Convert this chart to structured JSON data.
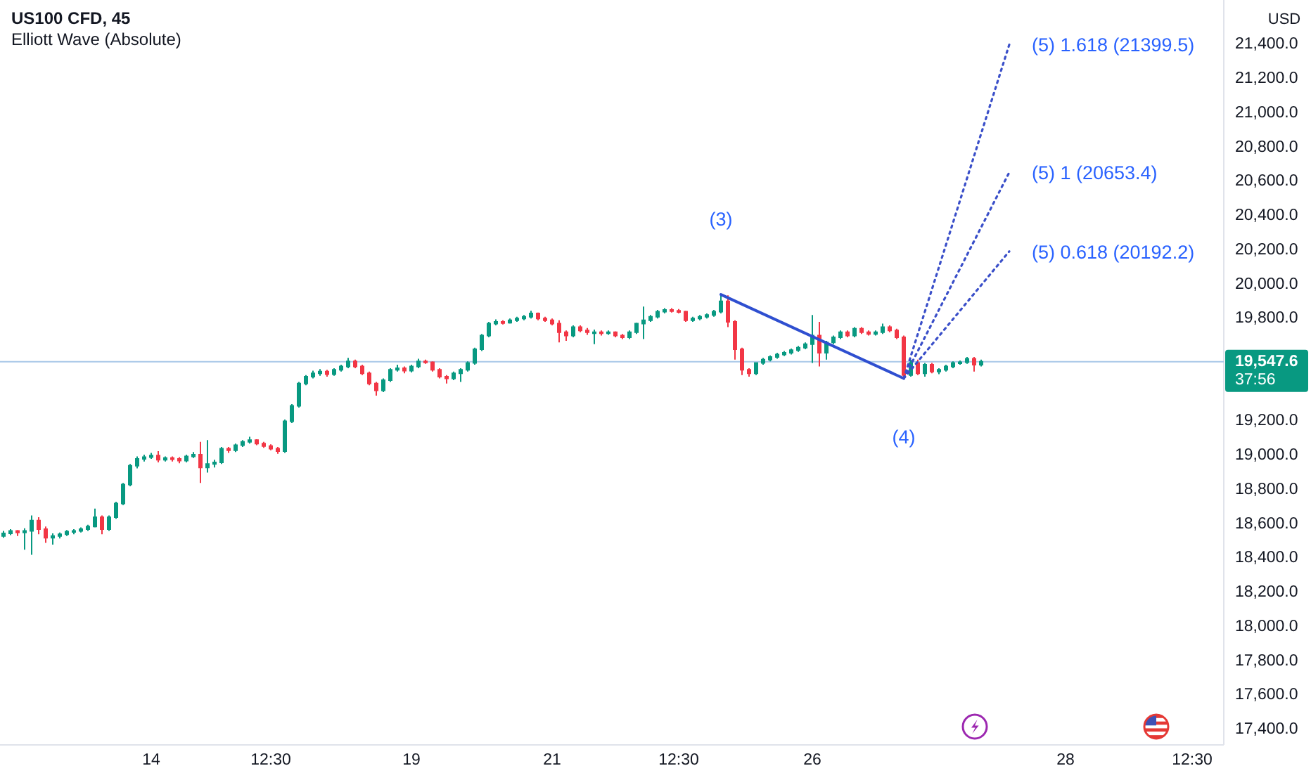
{
  "chart_data": {
    "type": "candlestick",
    "title": "US100 CFD, 45",
    "subtitle": "Elliott Wave (Absolute)",
    "ylabel": "USD",
    "categories": [
      null,
      null,
      null,
      null,
      null,
      null,
      null,
      null,
      null,
      null,
      null,
      null,
      null,
      null,
      null,
      null,
      null,
      null,
      null,
      null,
      null,
      "14",
      null,
      null,
      null,
      null,
      null,
      null,
      null,
      null,
      null,
      null,
      null,
      null,
      null,
      null,
      null,
      null,
      "12:30",
      null,
      null,
      null,
      null,
      null,
      null,
      null,
      null,
      null,
      null,
      null,
      null,
      null,
      null,
      null,
      null,
      null,
      null,
      null,
      "19",
      null,
      null,
      null,
      null,
      null,
      null,
      null,
      null,
      null,
      null,
      null,
      null,
      null,
      null,
      null,
      null,
      null,
      null,
      null,
      "21",
      null,
      null,
      null,
      null,
      null,
      null,
      null,
      null,
      null,
      null,
      null,
      null,
      null,
      null,
      null,
      null,
      null,
      "12:30",
      null,
      null,
      null,
      null,
      null,
      null,
      null,
      null,
      null,
      null,
      null,
      null,
      null,
      null,
      null,
      null,
      null,
      null,
      "26",
      null,
      null,
      null,
      null,
      null,
      null,
      null,
      null,
      null,
      null,
      null,
      null,
      null,
      null,
      null,
      null,
      null,
      null,
      null,
      null,
      null,
      null,
      null,
      null,
      null,
      null,
      null,
      null,
      null,
      null,
      null,
      null,
      null,
      null,
      null,
      "28",
      null,
      null,
      null,
      null,
      null,
      null,
      null,
      null,
      null,
      null,
      null,
      null,
      null,
      null,
      null,
      null,
      null,
      "12:30",
      null,
      null,
      null,
      null
    ],
    "ylim": [
      17310,
      21660
    ],
    "yticks": [
      {
        "value": 17400,
        "label": "17,400.0"
      },
      {
        "value": 17600,
        "label": "17,600.0"
      },
      {
        "value": 17800,
        "label": "17,800.0"
      },
      {
        "value": 18000,
        "label": "18,000.0"
      },
      {
        "value": 18200,
        "label": "18,200.0"
      },
      {
        "value": 18400,
        "label": "18,400.0"
      },
      {
        "value": 18600,
        "label": "18,600.0"
      },
      {
        "value": 18800,
        "label": "18,800.0"
      },
      {
        "value": 19000,
        "label": "19,000.0"
      },
      {
        "value": 19200,
        "label": "19,200.0"
      },
      {
        "value": 19800,
        "label": "19,800.0"
      },
      {
        "value": 20000,
        "label": "20,000.0"
      },
      {
        "value": 20200,
        "label": "20,200.0"
      },
      {
        "value": 20400,
        "label": "20,400.0"
      },
      {
        "value": 20600,
        "label": "20,600.0"
      },
      {
        "value": 20800,
        "label": "20,800.0"
      },
      {
        "value": 21000,
        "label": "21,000.0"
      },
      {
        "value": 21200,
        "label": "21,200.0"
      },
      {
        "value": 21400,
        "label": "21,400.0"
      }
    ],
    "ohlc": [
      [
        18530,
        18560,
        18520,
        18545
      ],
      [
        18545,
        18570,
        18535,
        18560
      ],
      [
        18560,
        18565,
        18530,
        18550
      ],
      [
        18550,
        18575,
        18450,
        18560
      ],
      [
        18560,
        18650,
        18420,
        18620
      ],
      [
        18620,
        18640,
        18540,
        18570
      ],
      [
        18570,
        18585,
        18490,
        18520
      ],
      [
        18520,
        18545,
        18480,
        18530
      ],
      [
        18530,
        18550,
        18515,
        18540
      ],
      [
        18540,
        18565,
        18530,
        18555
      ],
      [
        18555,
        18570,
        18540,
        18560
      ],
      [
        18560,
        18580,
        18550,
        18570
      ],
      [
        18570,
        18595,
        18560,
        18585
      ],
      [
        18585,
        18690,
        18580,
        18640
      ],
      [
        18640,
        18650,
        18540,
        18570
      ],
      [
        18570,
        18650,
        18560,
        18640
      ],
      [
        18640,
        18730,
        18630,
        18720
      ],
      [
        18720,
        18840,
        18710,
        18830
      ],
      [
        18830,
        18950,
        18820,
        18940
      ],
      [
        18940,
        18995,
        18925,
        18980
      ],
      [
        18980,
        19005,
        18965,
        18990
      ],
      [
        18990,
        19015,
        18980,
        19000
      ],
      [
        19000,
        19025,
        18960,
        18975
      ],
      [
        18975,
        18995,
        18965,
        18985
      ],
      [
        18985,
        18995,
        18965,
        18980
      ],
      [
        18980,
        18990,
        18955,
        18970
      ],
      [
        18970,
        19005,
        18960,
        18995
      ],
      [
        18995,
        19020,
        18985,
        19005
      ],
      [
        19005,
        19080,
        18840,
        18930
      ],
      [
        18930,
        19090,
        18900,
        18950
      ],
      [
        18950,
        18975,
        18930,
        18960
      ],
      [
        18960,
        19050,
        18950,
        19040
      ],
      [
        19040,
        19050,
        19015,
        19030
      ],
      [
        19030,
        19070,
        19020,
        19060
      ],
      [
        19060,
        19090,
        19050,
        19080
      ],
      [
        19080,
        19110,
        19070,
        19090
      ],
      [
        19090,
        19095,
        19060,
        19070
      ],
      [
        19070,
        19080,
        19045,
        19055
      ],
      [
        19055,
        19065,
        19030,
        19040
      ],
      [
        19040,
        19050,
        19010,
        19025
      ],
      [
        19025,
        19210,
        19015,
        19200
      ],
      [
        19200,
        19300,
        19190,
        19290
      ],
      [
        19290,
        19430,
        19280,
        19420
      ],
      [
        19420,
        19470,
        19410,
        19460
      ],
      [
        19460,
        19495,
        19450,
        19480
      ],
      [
        19480,
        19505,
        19465,
        19490
      ],
      [
        19490,
        19500,
        19460,
        19475
      ],
      [
        19475,
        19510,
        19465,
        19500
      ],
      [
        19500,
        19530,
        19490,
        19520
      ],
      [
        19520,
        19570,
        19510,
        19550
      ],
      [
        19550,
        19560,
        19510,
        19520
      ],
      [
        19520,
        19530,
        19470,
        19480
      ],
      [
        19480,
        19490,
        19410,
        19420
      ],
      [
        19420,
        19430,
        19350,
        19380
      ],
      [
        19380,
        19450,
        19370,
        19440
      ],
      [
        19440,
        19510,
        19430,
        19500
      ],
      [
        19500,
        19530,
        19490,
        19510
      ],
      [
        19510,
        19520,
        19480,
        19495
      ],
      [
        19495,
        19530,
        19485,
        19520
      ],
      [
        19520,
        19565,
        19510,
        19550
      ],
      [
        19550,
        19560,
        19535,
        19545
      ],
      [
        19545,
        19550,
        19490,
        19500
      ],
      [
        19500,
        19510,
        19450,
        19460
      ],
      [
        19460,
        19470,
        19420,
        19450
      ],
      [
        19450,
        19490,
        19440,
        19480
      ],
      [
        19480,
        19510,
        19430,
        19500
      ],
      [
        19500,
        19550,
        19490,
        19540
      ],
      [
        19540,
        19630,
        19530,
        19620
      ],
      [
        19620,
        19710,
        19610,
        19700
      ],
      [
        19700,
        19780,
        19690,
        19770
      ],
      [
        19770,
        19795,
        19760,
        19780
      ],
      [
        19780,
        19790,
        19765,
        19775
      ],
      [
        19775,
        19800,
        19770,
        19790
      ],
      [
        19790,
        19810,
        19780,
        19800
      ],
      [
        19800,
        19820,
        19790,
        19810
      ],
      [
        19810,
        19845,
        19800,
        19830
      ],
      [
        19830,
        19835,
        19790,
        19800
      ],
      [
        19800,
        19810,
        19780,
        19790
      ],
      [
        19790,
        19800,
        19760,
        19770
      ],
      [
        19770,
        19790,
        19660,
        19720
      ],
      [
        19720,
        19730,
        19670,
        19700
      ],
      [
        19700,
        19760,
        19690,
        19750
      ],
      [
        19750,
        19760,
        19720,
        19730
      ],
      [
        19730,
        19745,
        19705,
        19720
      ],
      [
        19720,
        19735,
        19650,
        19720
      ],
      [
        19720,
        19730,
        19700,
        19715
      ],
      [
        19715,
        19730,
        19705,
        19720
      ],
      [
        19720,
        19725,
        19690,
        19700
      ],
      [
        19700,
        19710,
        19680,
        19690
      ],
      [
        19690,
        19730,
        19680,
        19720
      ],
      [
        19720,
        19775,
        19710,
        19770
      ],
      [
        19770,
        19870,
        19680,
        19790
      ],
      [
        19790,
        19820,
        19780,
        19810
      ],
      [
        19810,
        19850,
        19800,
        19840
      ],
      [
        19840,
        19860,
        19830,
        19850
      ],
      [
        19850,
        19860,
        19835,
        19845
      ],
      [
        19845,
        19855,
        19830,
        19840
      ],
      [
        19840,
        19845,
        19780,
        19790
      ],
      [
        19790,
        19810,
        19780,
        19800
      ],
      [
        19800,
        19820,
        19790,
        19810
      ],
      [
        19810,
        19830,
        19800,
        19820
      ],
      [
        19820,
        19850,
        19810,
        19840
      ],
      [
        19840,
        19940,
        19830,
        19900
      ],
      [
        19900,
        19935,
        19750,
        19780
      ],
      [
        19780,
        19790,
        19560,
        19620
      ],
      [
        19620,
        19630,
        19470,
        19500
      ],
      [
        19500,
        19510,
        19460,
        19480
      ],
      [
        19480,
        19545,
        19470,
        19540
      ],
      [
        19540,
        19570,
        19530,
        19560
      ],
      [
        19560,
        19585,
        19550,
        19575
      ],
      [
        19575,
        19600,
        19565,
        19590
      ],
      [
        19590,
        19610,
        19580,
        19600
      ],
      [
        19600,
        19625,
        19590,
        19615
      ],
      [
        19615,
        19640,
        19605,
        19630
      ],
      [
        19630,
        19660,
        19620,
        19650
      ],
      [
        19650,
        19820,
        19540,
        19700
      ],
      [
        19700,
        19780,
        19520,
        19600
      ],
      [
        19600,
        19670,
        19560,
        19660
      ],
      [
        19660,
        19700,
        19650,
        19690
      ],
      [
        19690,
        19730,
        19680,
        19720
      ],
      [
        19720,
        19730,
        19690,
        19700
      ],
      [
        19700,
        19750,
        19690,
        19740
      ],
      [
        19740,
        19750,
        19710,
        19720
      ],
      [
        19720,
        19730,
        19700,
        19710
      ],
      [
        19710,
        19730,
        19700,
        19720
      ],
      [
        19720,
        19770,
        19710,
        19750
      ],
      [
        19750,
        19760,
        19720,
        19730
      ],
      [
        19730,
        19740,
        19680,
        19690
      ],
      [
        19690,
        19700,
        19450,
        19470
      ],
      [
        19470,
        19560,
        19460,
        19540
      ],
      [
        19540,
        19560,
        19470,
        19480
      ],
      [
        19480,
        19540,
        19460,
        19530
      ],
      [
        19530,
        19540,
        19480,
        19490
      ],
      [
        19490,
        19510,
        19475,
        19500
      ],
      [
        19500,
        19530,
        19490,
        19520
      ],
      [
        19520,
        19550,
        19510,
        19540
      ],
      [
        19540,
        19555,
        19530,
        19545
      ],
      [
        19545,
        19575,
        19535,
        19565
      ],
      [
        19565,
        19575,
        19490,
        19530
      ],
      [
        19530,
        19560,
        19520,
        19547.6
      ],
      null,
      null,
      null,
      null,
      null,
      null,
      null,
      null,
      null,
      null,
      null,
      null,
      null,
      null,
      null,
      null,
      null,
      null,
      null,
      null,
      null,
      null,
      null,
      null,
      null,
      null,
      null,
      null,
      null,
      null,
      null,
      null,
      null,
      null
    ],
    "series": [
      {
        "type": "line",
        "color": "#2f4fd0",
        "line_style": "solid",
        "values": [
          null,
          null,
          null,
          null,
          null,
          null,
          null,
          null,
          null,
          null,
          null,
          null,
          null,
          null,
          null,
          null,
          null,
          null,
          null,
          null,
          null,
          null,
          null,
          null,
          null,
          null,
          null,
          null,
          null,
          null,
          null,
          null,
          null,
          null,
          null,
          null,
          null,
          null,
          null,
          null,
          null,
          null,
          null,
          null,
          null,
          null,
          null,
          null,
          null,
          null,
          null,
          null,
          null,
          null,
          null,
          null,
          null,
          null,
          null,
          null,
          null,
          null,
          null,
          null,
          null,
          null,
          null,
          null,
          null,
          null,
          null,
          null,
          null,
          null,
          null,
          null,
          null,
          null,
          null,
          null,
          null,
          null,
          null,
          null,
          null,
          null,
          null,
          null,
          null,
          null,
          null,
          null,
          null,
          null,
          null,
          null,
          null,
          null,
          null,
          null,
          null,
          null,
          19940,
          null,
          null,
          null,
          null,
          null,
          null,
          null,
          null,
          null,
          null,
          null,
          null,
          null,
          null,
          null,
          null,
          null,
          null,
          null,
          null,
          null,
          null,
          null,
          null,
          null,
          19450,
          null,
          null,
          null,
          null,
          null,
          null,
          null,
          null,
          null,
          null,
          null,
          null,
          null,
          null,
          null,
          null,
          null,
          null,
          null,
          null,
          null,
          null,
          null,
          null,
          null,
          null,
          null,
          null,
          null,
          null,
          null,
          null,
          null,
          null,
          null,
          null,
          null,
          null,
          null,
          null,
          null,
          null,
          null,
          null,
          null
        ]
      },
      {
        "type": "line",
        "color": "#3a4fc9",
        "line_style": "dotted",
        "name": "(5) 1.618 (21399.5)",
        "values": [
          null,
          null,
          null,
          null,
          null,
          null,
          null,
          null,
          null,
          null,
          null,
          null,
          null,
          null,
          null,
          null,
          null,
          null,
          null,
          null,
          null,
          null,
          null,
          null,
          null,
          null,
          null,
          null,
          null,
          null,
          null,
          null,
          null,
          null,
          null,
          null,
          null,
          null,
          null,
          null,
          null,
          null,
          null,
          null,
          null,
          null,
          null,
          null,
          null,
          null,
          null,
          null,
          null,
          null,
          null,
          null,
          null,
          null,
          null,
          null,
          null,
          null,
          null,
          null,
          null,
          null,
          null,
          null,
          null,
          null,
          null,
          null,
          null,
          null,
          null,
          null,
          null,
          null,
          null,
          null,
          null,
          null,
          null,
          null,
          null,
          null,
          null,
          null,
          null,
          null,
          null,
          null,
          null,
          null,
          null,
          null,
          null,
          null,
          null,
          null,
          null,
          null,
          null,
          null,
          null,
          null,
          null,
          null,
          null,
          null,
          null,
          null,
          null,
          null,
          null,
          null,
          null,
          null,
          null,
          null,
          null,
          null,
          null,
          null,
          null,
          null,
          null,
          null,
          19450,
          null,
          null,
          null,
          null,
          null,
          null,
          null,
          null,
          null,
          null,
          null,
          null,
          null,
          null,
          21399.5,
          null,
          null,
          null,
          null,
          null,
          null,
          null,
          null,
          null,
          null,
          null,
          null,
          null,
          null,
          null,
          null,
          null,
          null,
          null,
          null,
          null,
          null,
          null,
          null,
          null,
          null,
          null,
          null,
          null,
          null
        ]
      },
      {
        "type": "line",
        "color": "#3a4fc9",
        "line_style": "dotted",
        "name": "(5) 1 (20653.4)",
        "values": [
          null,
          null,
          null,
          null,
          null,
          null,
          null,
          null,
          null,
          null,
          null,
          null,
          null,
          null,
          null,
          null,
          null,
          null,
          null,
          null,
          null,
          null,
          null,
          null,
          null,
          null,
          null,
          null,
          null,
          null,
          null,
          null,
          null,
          null,
          null,
          null,
          null,
          null,
          null,
          null,
          null,
          null,
          null,
          null,
          null,
          null,
          null,
          null,
          null,
          null,
          null,
          null,
          null,
          null,
          null,
          null,
          null,
          null,
          null,
          null,
          null,
          null,
          null,
          null,
          null,
          null,
          null,
          null,
          null,
          null,
          null,
          null,
          null,
          null,
          null,
          null,
          null,
          null,
          null,
          null,
          null,
          null,
          null,
          null,
          null,
          null,
          null,
          null,
          null,
          null,
          null,
          null,
          null,
          null,
          null,
          null,
          null,
          null,
          null,
          null,
          null,
          null,
          null,
          null,
          null,
          null,
          null,
          null,
          null,
          null,
          null,
          null,
          null,
          null,
          null,
          null,
          null,
          null,
          null,
          null,
          null,
          null,
          null,
          null,
          null,
          null,
          null,
          null,
          19450,
          null,
          null,
          null,
          null,
          null,
          null,
          null,
          null,
          null,
          null,
          null,
          null,
          null,
          null,
          20653.4,
          null,
          null,
          null,
          null,
          null,
          null,
          null,
          null,
          null,
          null,
          null,
          null,
          null,
          null,
          null,
          null,
          null,
          null,
          null,
          null,
          null,
          null,
          null,
          null,
          null,
          null,
          null,
          null,
          null,
          null
        ]
      },
      {
        "type": "line",
        "color": "#3a4fc9",
        "line_style": "dotted",
        "name": "(5) 0.618 (20192.2)",
        "values": [
          null,
          null,
          null,
          null,
          null,
          null,
          null,
          null,
          null,
          null,
          null,
          null,
          null,
          null,
          null,
          null,
          null,
          null,
          null,
          null,
          null,
          null,
          null,
          null,
          null,
          null,
          null,
          null,
          null,
          null,
          null,
          null,
          null,
          null,
          null,
          null,
          null,
          null,
          null,
          null,
          null,
          null,
          null,
          null,
          null,
          null,
          null,
          null,
          null,
          null,
          null,
          null,
          null,
          null,
          null,
          null,
          null,
          null,
          null,
          null,
          null,
          null,
          null,
          null,
          null,
          null,
          null,
          null,
          null,
          null,
          null,
          null,
          null,
          null,
          null,
          null,
          null,
          null,
          null,
          null,
          null,
          null,
          null,
          null,
          null,
          null,
          null,
          null,
          null,
          null,
          null,
          null,
          null,
          null,
          null,
          null,
          null,
          null,
          null,
          null,
          null,
          null,
          null,
          null,
          null,
          null,
          null,
          null,
          null,
          null,
          null,
          null,
          null,
          null,
          null,
          null,
          null,
          null,
          null,
          null,
          null,
          null,
          null,
          null,
          null,
          null,
          null,
          null,
          19450,
          null,
          null,
          null,
          null,
          null,
          null,
          null,
          null,
          null,
          null,
          null,
          null,
          null,
          null,
          20192.2,
          null,
          null,
          null,
          null,
          null,
          null,
          null,
          null,
          null,
          null,
          null,
          null,
          null,
          null,
          null,
          null,
          null,
          null,
          null,
          null,
          null,
          null,
          null,
          null,
          null,
          null,
          null,
          null,
          null,
          null
        ]
      }
    ],
    "ref_lines": [
      {
        "axis": "y",
        "value": 19547.6,
        "label": "19,547.6",
        "color": "#a9c8e8"
      }
    ],
    "annotations": [
      "(3)",
      "(4)",
      "37:56"
    ]
  }
}
